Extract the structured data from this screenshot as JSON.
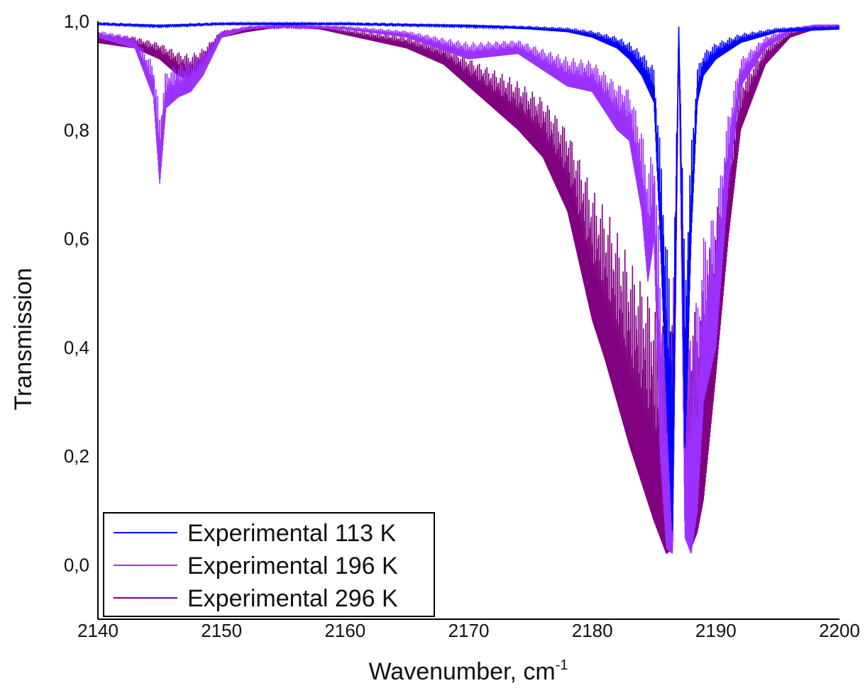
{
  "chart_data": {
    "type": "line",
    "xlabel": "Wavenumber, cm",
    "xlabel_sup": "-1",
    "ylabel": "Transmission",
    "xlim": [
      2140,
      2200
    ],
    "ylim": [
      -0.1,
      1.0
    ],
    "x_ticks": [
      2140,
      2150,
      2160,
      2170,
      2180,
      2190,
      2200
    ],
    "x_tick_labels": [
      "2140",
      "2150",
      "2160",
      "2170",
      "2180",
      "2190",
      "2200"
    ],
    "y_ticks": [
      0.0,
      0.2,
      0.4,
      0.6,
      0.8,
      1.0
    ],
    "y_tick_labels": [
      "0,0",
      "0,2",
      "0,4",
      "0,6",
      "0,8",
      "1,0"
    ],
    "grid": false,
    "legend_position": "bottom-left",
    "series": [
      {
        "name": "Experimental 296 K",
        "color": "#800080",
        "x": [
          2140,
          2143,
          2145,
          2146.5,
          2147.5,
          2148.5,
          2150,
          2152,
          2155,
          2158,
          2160,
          2163,
          2165,
          2167,
          2168,
          2170,
          2172,
          2174,
          2176,
          2178,
          2179,
          2180,
          2181,
          2182,
          2183,
          2184,
          2185,
          2185.5,
          2186,
          2186.5,
          2187,
          2187.5,
          2188,
          2188.5,
          2189,
          2190,
          2191,
          2192,
          2194,
          2196,
          2198,
          2200
        ],
        "y": [
          0.96,
          0.95,
          0.93,
          0.9,
          0.89,
          0.91,
          0.97,
          0.98,
          0.99,
          0.985,
          0.975,
          0.96,
          0.95,
          0.93,
          0.92,
          0.88,
          0.84,
          0.8,
          0.75,
          0.65,
          0.55,
          0.45,
          0.38,
          0.3,
          0.22,
          0.15,
          0.08,
          0.05,
          0.02,
          0.03,
          0.98,
          0.06,
          0.03,
          0.06,
          0.12,
          0.35,
          0.6,
          0.8,
          0.92,
          0.97,
          0.985,
          0.99
        ]
      },
      {
        "name": "Experimental 196 K",
        "color": "#9b30ff",
        "x": [
          2140,
          2143,
          2144.5,
          2145,
          2145.5,
          2146.5,
          2147.5,
          2148.5,
          2150,
          2152,
          2155,
          2160,
          2165,
          2170,
          2174,
          2178,
          2180,
          2182,
          2183,
          2184,
          2184.5,
          2185,
          2185.5,
          2186,
          2186.5,
          2187,
          2187.5,
          2188,
          2188.5,
          2189,
          2190,
          2191,
          2192,
          2194,
          2196,
          2198,
          2200
        ],
        "y": [
          0.97,
          0.95,
          0.86,
          0.7,
          0.84,
          0.86,
          0.87,
          0.9,
          0.97,
          0.985,
          0.99,
          0.985,
          0.97,
          0.93,
          0.94,
          0.88,
          0.87,
          0.8,
          0.78,
          0.65,
          0.52,
          0.6,
          0.2,
          0.03,
          0.02,
          0.98,
          0.05,
          0.02,
          0.1,
          0.3,
          0.4,
          0.7,
          0.88,
          0.95,
          0.98,
          0.99,
          0.99
        ]
      },
      {
        "name": "Experimental 113 K",
        "color": "#0000ff",
        "x": [
          2140,
          2145,
          2150,
          2160,
          2170,
          2175,
          2178,
          2180,
          2182,
          2183,
          2184,
          2185,
          2185.5,
          2186,
          2186.5,
          2187,
          2187.5,
          2188,
          2188.5,
          2189,
          2190,
          2192,
          2195,
          2200
        ],
        "y": [
          0.995,
          0.99,
          0.995,
          0.995,
          0.99,
          0.985,
          0.98,
          0.97,
          0.95,
          0.93,
          0.9,
          0.85,
          0.6,
          0.3,
          0.05,
          0.99,
          0.2,
          0.6,
          0.85,
          0.9,
          0.93,
          0.96,
          0.98,
          0.985
        ]
      }
    ]
  }
}
